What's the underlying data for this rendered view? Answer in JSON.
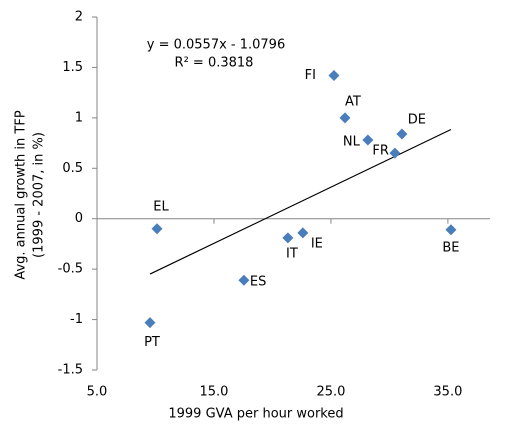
{
  "chart_data": {
    "type": "scatter",
    "y_label_lines": [
      "Avg. annual growth  in TFP",
      "(1999 - 2007, in %)"
    ],
    "x_label": "1999 GVA per hour worked",
    "categories": [
      "FI",
      "AT",
      "DE",
      "NL",
      "FR",
      "EL",
      "IT",
      "IE",
      "BE",
      "ES",
      "PT"
    ],
    "x": [
      25.26,
      26.2,
      31.07,
      28.16,
      30.47,
      10.13,
      21.32,
      22.6,
      35.26,
      17.56,
      9.53
    ],
    "values": [
      1.42,
      1.0,
      0.84,
      0.78,
      0.65,
      -0.1,
      -0.19,
      -0.14,
      -0.11,
      -0.61,
      -1.03
    ],
    "color": "#4a7ebb",
    "trendline": {
      "equation": "y = 0.0557x - 1.0796",
      "r_squared": "R² = 0.3818",
      "slope": 0.0557,
      "intercept": -1.0796
    },
    "xlim": [
      5,
      38.6
    ],
    "ylim": [
      -1.5,
      2
    ],
    "xticks": [
      {
        "value": 5,
        "label": "5.0"
      },
      {
        "value": 15,
        "label": "15.0"
      },
      {
        "value": 25,
        "label": "25.0"
      },
      {
        "value": 35,
        "label": "35.0"
      }
    ],
    "yticks": [
      2,
      1.5,
      1,
      0.5,
      0,
      -0.5,
      -1,
      -1.5
    ],
    "grid": false
  }
}
